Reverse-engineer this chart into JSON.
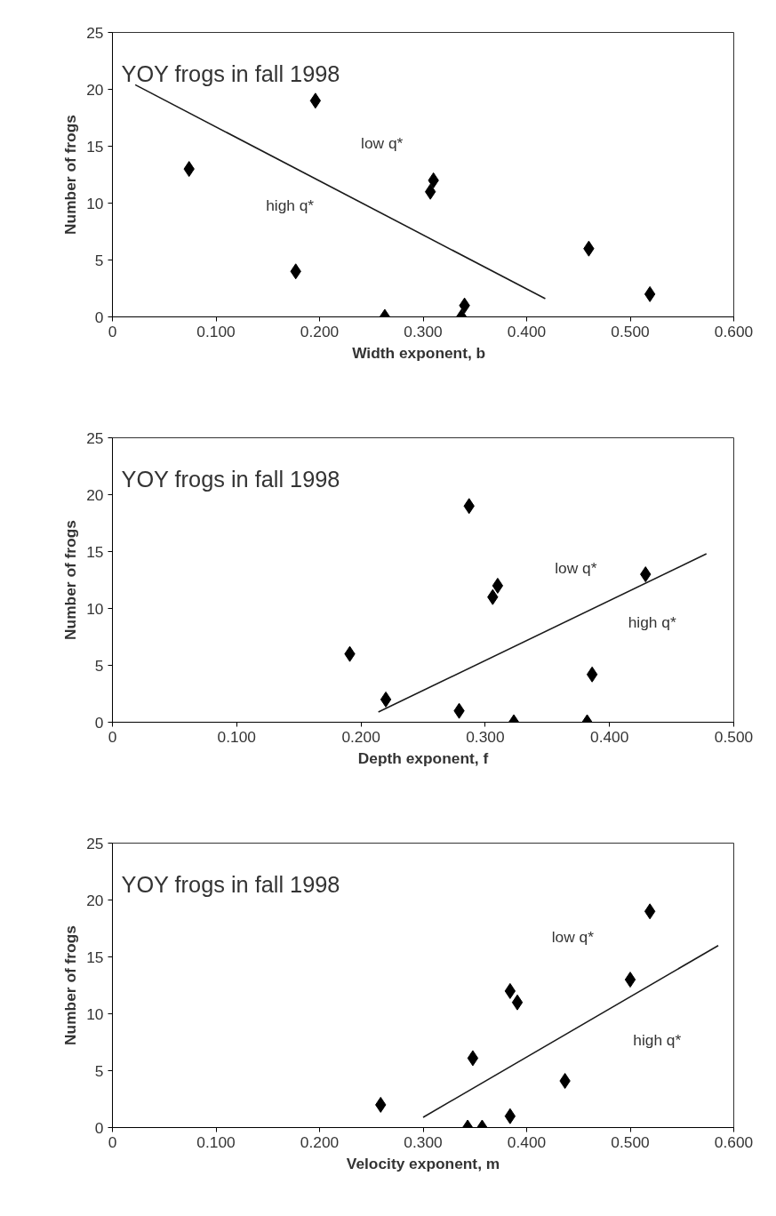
{
  "chart_data": [
    {
      "type": "scatter",
      "title": "YOY frogs in fall 1998",
      "xlabel": "Width  exponent,  b",
      "ylabel": "Number of frogs",
      "xlim": [
        0,
        0.6
      ],
      "ylim": [
        0,
        25
      ],
      "xticks": [
        0,
        {
          "value": 0.1,
          "label": "0.100"
        },
        {
          "value": 0.2,
          "label": "0.200"
        },
        {
          "value": 0.3,
          "label": "0.300"
        },
        {
          "value": 0.4,
          "label": "0.400"
        },
        {
          "value": 0.5,
          "label": "0.500"
        },
        {
          "value": 0.6,
          "label": "0.600"
        }
      ],
      "yticks": [
        0,
        5,
        10,
        15,
        20,
        25
      ],
      "grid": false,
      "marker": "diamond",
      "annotations": [
        "low q*",
        "high q*"
      ],
      "series": [
        {
          "color": "#000000",
          "x": [
            0.074,
            0.177,
            0.196,
            0.263,
            0.307,
            0.31,
            0.337,
            0.34,
            0.46,
            0.519
          ],
          "values": [
            13,
            4,
            19,
            0,
            11,
            12,
            0,
            1,
            6,
            2
          ]
        },
        {
          "type": "line",
          "color": "#1a1a1a",
          "marker": "none",
          "x": [
            0.022,
            0.418
          ],
          "values": [
            20.4,
            1.6
          ]
        }
      ]
    },
    {
      "type": "scatter",
      "title": "YOY frogs in fall 1998",
      "xlabel": "Depth exponent, f",
      "ylabel": "Number of frogs",
      "xlim": [
        0,
        0.5
      ],
      "ylim": [
        0,
        25
      ],
      "xticks": [
        0,
        {
          "value": 0.1,
          "label": "0.100"
        },
        {
          "value": 0.2,
          "label": "0.200"
        },
        {
          "value": 0.3,
          "label": "0.300"
        },
        {
          "value": 0.4,
          "label": "0.400"
        },
        {
          "value": 0.5,
          "label": "0.500"
        }
      ],
      "yticks": [
        0,
        5,
        10,
        15,
        20,
        25
      ],
      "grid": false,
      "marker": "diamond",
      "annotations": [
        "low  q*",
        "high  q*"
      ],
      "series": [
        {
          "color": "#000000",
          "x": [
            0.191,
            0.22,
            0.279,
            0.287,
            0.306,
            0.31,
            0.323,
            0.382,
            0.386,
            0.429
          ],
          "values": [
            6,
            2,
            1,
            19,
            11,
            12,
            0,
            0,
            4.2,
            13
          ]
        },
        {
          "type": "line",
          "color": "#1a1a1a",
          "marker": "none",
          "x": [
            0.214,
            0.478
          ],
          "values": [
            0.9,
            14.8
          ]
        }
      ]
    },
    {
      "type": "scatter",
      "title": "YOY frogs in fall 1998",
      "xlabel": "Velocity exponent, m",
      "ylabel": "Number of frogs",
      "xlim": [
        0,
        0.6
      ],
      "ylim": [
        0,
        25
      ],
      "xticks": [
        0,
        {
          "value": 0.1,
          "label": "0.100"
        },
        {
          "value": 0.2,
          "label": "0.200"
        },
        {
          "value": 0.3,
          "label": "0.300"
        },
        {
          "value": 0.4,
          "label": "0.400"
        },
        {
          "value": 0.5,
          "label": "0.500"
        },
        {
          "value": 0.6,
          "label": "0.600"
        }
      ],
      "yticks": [
        0,
        5,
        10,
        15,
        20,
        25
      ],
      "grid": false,
      "marker": "diamond",
      "annotations": [
        "low  q*",
        "high  q*"
      ],
      "series": [
        {
          "color": "#000000",
          "x": [
            0.259,
            0.343,
            0.348,
            0.357,
            0.384,
            0.384,
            0.391,
            0.437,
            0.5,
            0.519
          ],
          "values": [
            2,
            0,
            6.1,
            0,
            12,
            1,
            11,
            4.1,
            13,
            19
          ]
        },
        {
          "type": "line",
          "color": "#1a1a1a",
          "marker": "none",
          "x": [
            0.3,
            0.585
          ],
          "values": [
            0.9,
            16
          ]
        }
      ]
    }
  ]
}
